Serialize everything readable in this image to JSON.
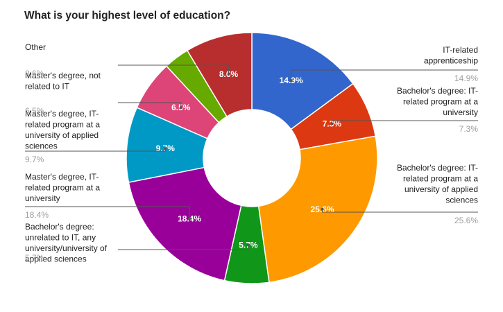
{
  "chart_data": {
    "type": "pie",
    "donut": true,
    "title": "What is your highest level of education?",
    "slices": [
      {
        "name": "IT-related apprenticeship",
        "name_lines": [
          "IT-related",
          "apprenticeship"
        ],
        "value": 14.9,
        "label": "14.9%",
        "pct": "14.9%",
        "color": "#3366cc",
        "side": "right"
      },
      {
        "name": "Bachelor's degree: IT-related program at a university",
        "name_lines": [
          "Bachelor's degree: IT-",
          "related program at a",
          "university"
        ],
        "value": 7.3,
        "label": "7.3%",
        "pct": "7.3%",
        "color": "#dc3912",
        "side": "right"
      },
      {
        "name": "Bachelor's degree: IT-related program at a university of applied sciences",
        "name_lines": [
          "Bachelor's degree: IT-",
          "related program at a",
          "university of applied",
          "sciences"
        ],
        "value": 25.6,
        "label": "25.6%",
        "pct": "25.6%",
        "color": "#ff9900",
        "side": "right"
      },
      {
        "name": "Bachelor's degree: unrelated to IT, any university/university of applied sciences",
        "name_lines": [
          "Bachelor's degree:",
          "unrelated to IT, any",
          "university/university of",
          "applied sciences"
        ],
        "value": 5.7,
        "label": "5.7%",
        "pct": "5.7%",
        "color": "#109618",
        "side": "left"
      },
      {
        "name": "Master's degree, IT-related program at a university",
        "name_lines": [
          "Master's degree, IT-",
          "related program at a",
          "university"
        ],
        "value": 18.4,
        "label": "18.4%",
        "pct": "18.4%",
        "color": "#990099",
        "side": "left"
      },
      {
        "name": "Master's degree, IT-related program at a university of applied sciences",
        "name_lines": [
          "Master's degree, IT-",
          "related program at a",
          "university of applied",
          "sciences"
        ],
        "value": 9.7,
        "label": "9.7%",
        "pct": "9.7%",
        "color": "#0099c6",
        "side": "left"
      },
      {
        "name": "Master's degree, not related to IT",
        "name_lines": [
          "Master's degree, not",
          "related to IT"
        ],
        "value": 6.5,
        "label": "6.5%",
        "pct": "6.5%",
        "color": "#dd4477",
        "side": "left"
      },
      {
        "name": "Unlabeled",
        "name_lines": [],
        "value": 3.3,
        "label": "",
        "pct": "",
        "color": "#66aa00",
        "side": "none"
      },
      {
        "name": "Other",
        "name_lines": [
          "Other"
        ],
        "value": 8.6,
        "label": "8.6%",
        "pct": "8.6%",
        "color": "#b82e2e",
        "side": "left"
      }
    ],
    "legend": "labeled"
  }
}
